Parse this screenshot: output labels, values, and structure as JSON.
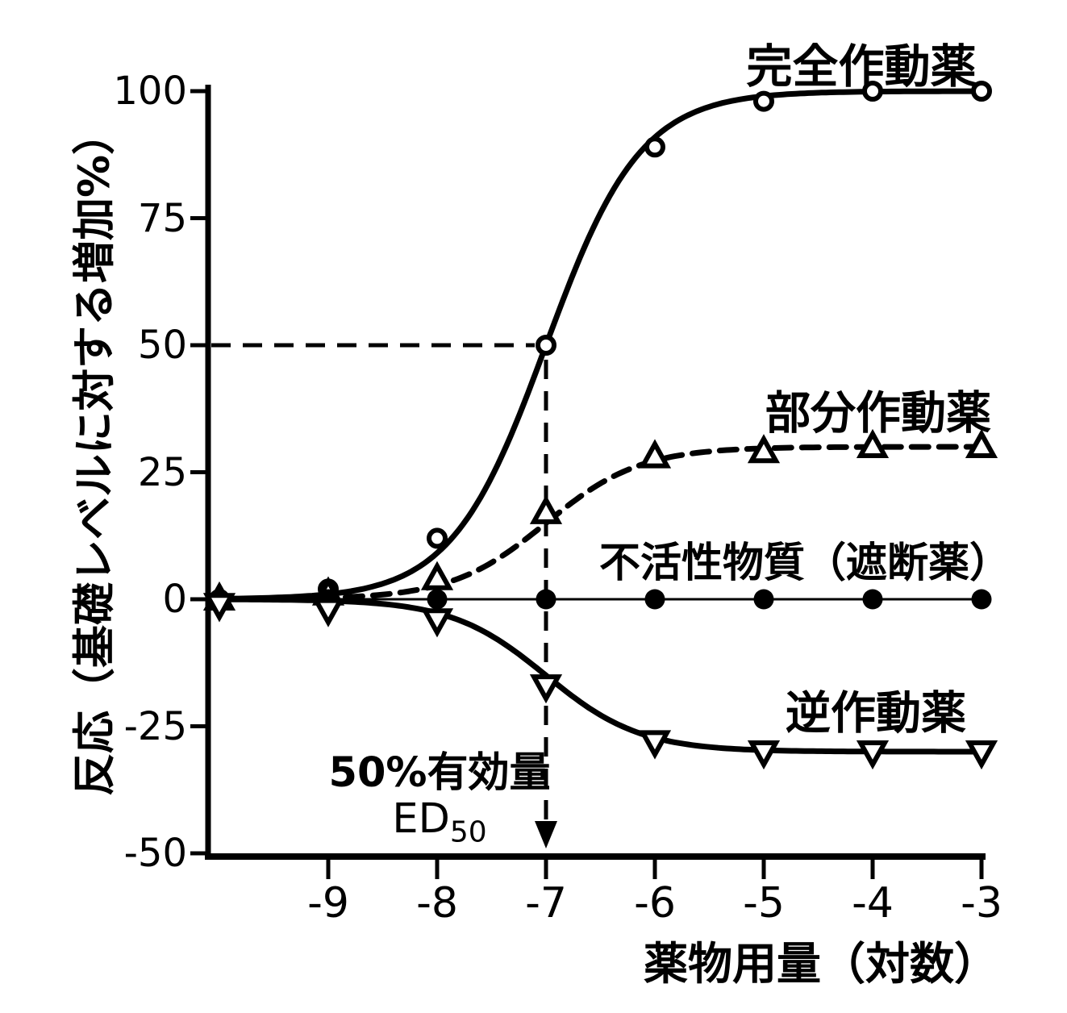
{
  "colors": {
    "ink": "#000000",
    "background": "#ffffff"
  },
  "chart_data": {
    "type": "line",
    "title": "",
    "xlabel": "薬物用量（対数）",
    "ylabel": "反応（基礎レベルに対する増加%）",
    "xlim": [
      -10.1,
      -2.96
    ],
    "ylim": [
      -50,
      100
    ],
    "grid": false,
    "legend_position": "inline-labels",
    "x_ticks": [
      -9,
      -8,
      -7,
      -6,
      -5,
      -4,
      -3
    ],
    "x_tick_labels": [
      "-9",
      "-8",
      "-7",
      "-6",
      "-5",
      "-4",
      "-3"
    ],
    "y_ticks": [
      100,
      75,
      50,
      25,
      0,
      -25,
      -50
    ],
    "y_tick_labels": [
      "100",
      "75",
      "50",
      "25",
      "0",
      "-25",
      "-50"
    ],
    "series": [
      {
        "key": "full-agonist",
        "name": "完全作動薬",
        "marker": "open-circle",
        "line": "solid",
        "line_width": 7,
        "emax": 100,
        "log_ec50": -7,
        "x": [
          -10,
          -9,
          -8,
          -7,
          -6,
          -5,
          -4,
          -3
        ],
        "values": [
          0,
          2,
          12,
          50,
          89,
          98,
          100,
          100
        ]
      },
      {
        "key": "partial-agonist",
        "name": "部分作動薬",
        "marker": "open-triangle-up",
        "line": "dashed",
        "line_width": 7,
        "emax": 30,
        "log_ec50": -7,
        "x": [
          -10,
          -9,
          -8,
          -7,
          -6,
          -5,
          -4,
          -3
        ],
        "values": [
          0,
          1,
          4,
          17,
          28,
          29,
          30,
          30
        ]
      },
      {
        "key": "inactive-blocker",
        "name": "不活性物質（遮断薬）",
        "marker": "filled-circle",
        "line": "solid",
        "line_width": 3,
        "emax": 0,
        "log_ec50": -7,
        "x": [
          -10,
          -9,
          -8,
          -7,
          -6,
          -5,
          -4,
          -3
        ],
        "values": [
          0,
          0,
          0,
          0,
          0,
          0,
          0,
          0
        ]
      },
      {
        "key": "inverse-agonist",
        "name": "逆作動薬",
        "marker": "open-triangle-down",
        "line": "solid",
        "line_width": 7,
        "emax": -30,
        "log_ec50": -7,
        "x": [
          -10,
          -9,
          -8,
          -7,
          -6,
          -5,
          -4,
          -3
        ],
        "values": [
          -1,
          -2,
          -4,
          -17,
          -28,
          -30,
          -30,
          -30
        ]
      }
    ],
    "annotations": {
      "ed50_line1": "50%有効量",
      "ed50_base": "ED",
      "ed50_sub": "50",
      "guide": {
        "x": -7,
        "y": 50
      }
    }
  }
}
